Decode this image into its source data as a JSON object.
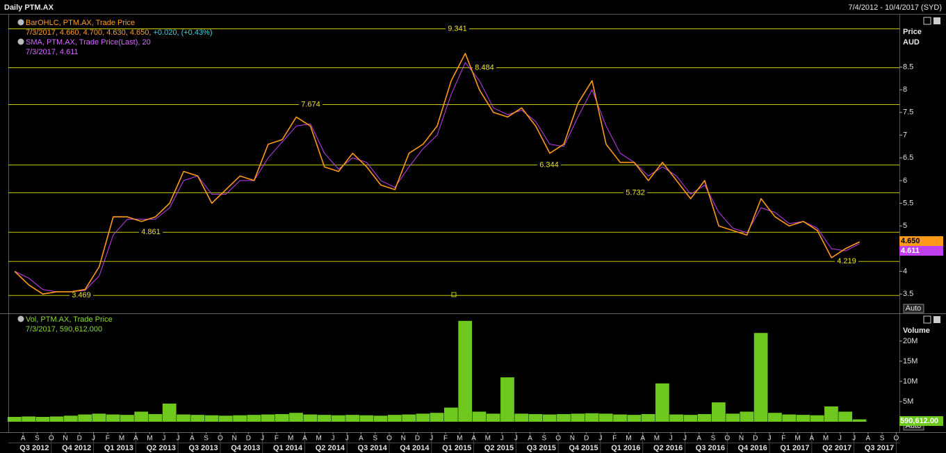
{
  "chart_data": {
    "type": "line",
    "title": "Daily PTM.AX",
    "date_range": "7/4/2012 - 10/4/2017 (SYD)",
    "x": [
      "2012-07",
      "2012-08",
      "2012-09",
      "2012-10",
      "2012-11",
      "2012-12",
      "2013-01",
      "2013-02",
      "2013-03",
      "2013-04",
      "2013-05",
      "2013-06",
      "2013-07",
      "2013-08",
      "2013-09",
      "2013-10",
      "2013-11",
      "2013-12",
      "2014-01",
      "2014-02",
      "2014-03",
      "2014-04",
      "2014-05",
      "2014-06",
      "2014-07",
      "2014-08",
      "2014-09",
      "2014-10",
      "2014-11",
      "2014-12",
      "2015-01",
      "2015-02",
      "2015-03",
      "2015-04",
      "2015-05",
      "2015-06",
      "2015-07",
      "2015-08",
      "2015-09",
      "2015-10",
      "2015-11",
      "2015-12",
      "2016-01",
      "2016-02",
      "2016-03",
      "2016-04",
      "2016-05",
      "2016-06",
      "2016-07",
      "2016-08",
      "2016-09",
      "2016-10",
      "2016-11",
      "2016-12",
      "2017-01",
      "2017-02",
      "2017-03",
      "2017-04",
      "2017-05",
      "2017-06",
      "2017-07"
    ],
    "series": [
      {
        "name": "BarOHLC, PTM.AX, Trade Price",
        "color": "#ff9a1a",
        "detail": [
          "7/3/2017, 4.660, 4.700, 4.630, 4.650,",
          "+0.020, (+0.43%)"
        ],
        "last_label": "4.650",
        "values": [
          4.0,
          3.7,
          3.5,
          3.55,
          3.55,
          3.6,
          4.1,
          5.2,
          5.2,
          5.1,
          5.2,
          5.5,
          6.2,
          6.1,
          5.5,
          5.8,
          6.1,
          6.0,
          6.8,
          6.9,
          7.4,
          7.2,
          6.3,
          6.2,
          6.6,
          6.3,
          5.9,
          5.8,
          6.6,
          6.8,
          7.2,
          8.2,
          8.8,
          8.0,
          7.5,
          7.4,
          7.6,
          7.2,
          6.6,
          6.8,
          7.7,
          8.2,
          6.8,
          6.4,
          6.4,
          6.0,
          6.4,
          6.0,
          5.6,
          6.0,
          5.0,
          4.9,
          4.8,
          5.6,
          5.2,
          5.0,
          5.1,
          4.9,
          4.3,
          4.5,
          4.65
        ]
      },
      {
        "name": "SMA, PTM.AX, Trade Price(Last), 20",
        "color": "#c040f0",
        "detail": [
          "7/3/2017, 4.611"
        ],
        "last_label": "4.611",
        "values": [
          4.0,
          3.85,
          3.6,
          3.55,
          3.55,
          3.58,
          3.9,
          4.8,
          5.15,
          5.15,
          5.15,
          5.4,
          6.0,
          6.1,
          5.7,
          5.7,
          6.0,
          6.0,
          6.5,
          6.85,
          7.2,
          7.25,
          6.6,
          6.25,
          6.5,
          6.4,
          6.0,
          5.85,
          6.3,
          6.7,
          7.0,
          7.9,
          8.6,
          8.2,
          7.6,
          7.45,
          7.55,
          7.3,
          6.8,
          6.75,
          7.4,
          8.0,
          7.2,
          6.6,
          6.4,
          6.1,
          6.3,
          6.1,
          5.7,
          5.9,
          5.3,
          4.95,
          4.85,
          5.4,
          5.3,
          5.05,
          5.1,
          4.95,
          4.5,
          4.45,
          4.611
        ]
      }
    ],
    "ylabel": [
      "Price",
      "AUD"
    ],
    "ylim": [
      3.09,
      9.64
    ],
    "yticks": [
      3.5,
      4,
      5,
      5.5,
      6,
      6.5,
      7,
      7.5,
      8,
      8.5
    ],
    "levels": [
      9.341,
      8.484,
      7.674,
      6.344,
      5.732,
      4.861,
      4.219,
      3.469
    ],
    "level_color": "#c8c800",
    "volume": {
      "name": "Vol, PTM.AX, Trade Price",
      "detail": "7/3/2017, 590,612.000",
      "color": "#6ec81e",
      "ylabel": "Volume",
      "last_label": "590,612.00",
      "ylim": [
        0,
        26000000
      ],
      "yticks": [
        {
          "value": 5000000,
          "label": "5M"
        },
        {
          "value": 10000000,
          "label": "10M"
        },
        {
          "value": 15000000,
          "label": "15M"
        },
        {
          "value": 20000000,
          "label": "20M"
        }
      ],
      "values": [
        1200000,
        1300000,
        1200000,
        1300000,
        1500000,
        1800000,
        2000000,
        1800000,
        1700000,
        2500000,
        1900000,
        4500000,
        1800000,
        1700000,
        1600000,
        1500000,
        1600000,
        1700000,
        1800000,
        1900000,
        2200000,
        1800000,
        1700000,
        1600000,
        1700000,
        1600000,
        1500000,
        1700000,
        1800000,
        2000000,
        2200000,
        3500000,
        25000000,
        2500000,
        2000000,
        11000000,
        2000000,
        1900000,
        1800000,
        1900000,
        2000000,
        2100000,
        2000000,
        1800000,
        1700000,
        1900000,
        9500000,
        1800000,
        1700000,
        1900000,
        4800000,
        2000000,
        2500000,
        22000000,
        2200000,
        1800000,
        1700000,
        1600000,
        3800000,
        2500000,
        590612
      ]
    },
    "month_ticks": [
      "A",
      "S",
      "O",
      "N",
      "D",
      "J",
      "F",
      "M",
      "A",
      "M",
      "J",
      "J",
      "A",
      "S",
      "O",
      "N",
      "D",
      "J",
      "F",
      "M",
      "A",
      "M",
      "J",
      "J",
      "A",
      "S",
      "O",
      "N",
      "D",
      "J",
      "F",
      "M",
      "A",
      "M",
      "J",
      "J",
      "A",
      "S",
      "O",
      "N",
      "D",
      "J",
      "F",
      "M",
      "A",
      "M",
      "J",
      "J",
      "A",
      "S",
      "O",
      "N",
      "D",
      "J",
      "F",
      "M",
      "A",
      "M",
      "J",
      "J",
      "A",
      "S",
      "O"
    ],
    "quarter_ticks": [
      "Q3 2012",
      "Q4 2012",
      "Q1 2013",
      "Q2 2013",
      "Q3 2013",
      "Q4 2013",
      "Q1 2014",
      "Q2 2014",
      "Q3 2014",
      "Q4 2014",
      "Q1 2015",
      "Q2 2015",
      "Q3 2015",
      "Q4 2015",
      "Q1 2016",
      "Q2 2016",
      "Q3 2016",
      "Q4 2016",
      "Q1 2017",
      "Q2 2017",
      "Q3 2017"
    ],
    "buttons": [
      "Auto",
      "Auto"
    ]
  }
}
